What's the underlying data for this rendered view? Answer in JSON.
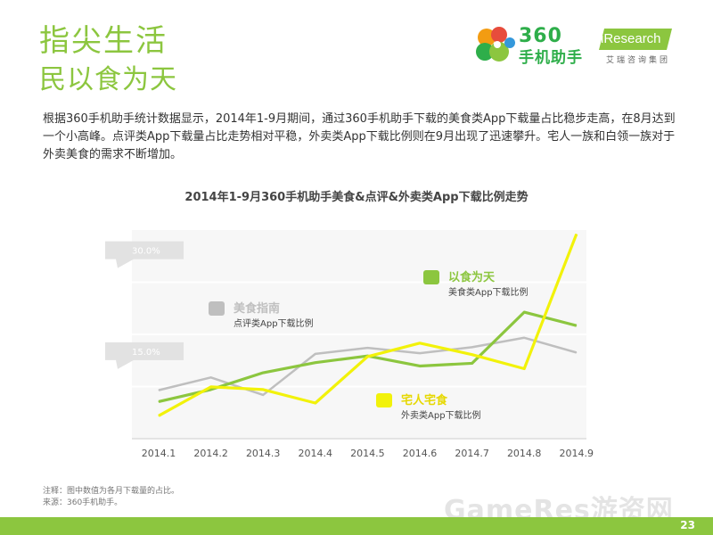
{
  "header": {
    "title_line1": "指尖生活",
    "title_line2": "民以食为天",
    "logo_360_line1": "360",
    "logo_360_line2": "手机助手",
    "logo_iresearch": "iResearch",
    "logo_iresearch_sub": "艾瑞咨询集团"
  },
  "paragraph": "根据360手机助手统计数据显示，2014年1-9月期间，通过360手机助手下载的美食类App下载量占比稳步走高，在8月达到一个小高峰。点评类App下载量占比走势相对平稳，外卖类App下载比例则在9月出现了迅速攀升。宅人一族和白领一族对于外卖美食的需求不断增加。",
  "chart_data": {
    "type": "line",
    "title": "2014年1-9月360手机助手美食&点评&外卖类App下载比例走势",
    "categories": [
      "2014.1",
      "2014.2",
      "2014.3",
      "2014.4",
      "2014.5",
      "2014.6",
      "2014.7",
      "2014.8",
      "2014.9"
    ],
    "y_ticks": [
      "30.0%",
      "15.0%"
    ],
    "y_tick_values": [
      30,
      15
    ],
    "ylim": [
      2,
      33
    ],
    "series": [
      {
        "name": "以食为天",
        "subtitle": "美食类App下载比例",
        "color": "#8cc63f",
        "values": [
          7.5,
          9.3,
          11.8,
          13.3,
          14.3,
          12.8,
          13.2,
          20.8,
          18.8
        ]
      },
      {
        "name": "美食指南",
        "subtitle": "点评类App下载比例",
        "color": "#bfbfbf",
        "values": [
          9.2,
          11.1,
          8.5,
          14.6,
          15.5,
          14.7,
          15.6,
          17.0,
          14.8
        ]
      },
      {
        "name": "宅人宅食",
        "subtitle": "外卖类App下载比例",
        "color": "#f2f20a",
        "values": [
          5.4,
          9.7,
          9.3,
          7.3,
          14.2,
          16.2,
          14.5,
          12.4,
          32.4
        ]
      }
    ]
  },
  "footer": {
    "note": "注释：图中数值为各月下载量的占比。",
    "source": "来源：360手机助手。",
    "watermark": "GameRes游资网",
    "page_number": "23"
  }
}
